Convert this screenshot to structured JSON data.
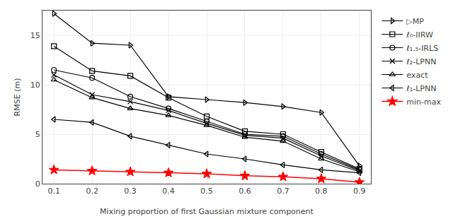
{
  "chart_data": {
    "type": "line",
    "xlabel": "Mixing proportion of first Gaussian mixture component",
    "ylabel": "RMSE (m)",
    "x": [
      0.1,
      0.2,
      0.3,
      0.4,
      0.5,
      0.6,
      0.7,
      0.8,
      0.9
    ],
    "series": [
      {
        "name": "▷MP",
        "color": "#000000",
        "marker": "triangle-right",
        "values": [
          17.2,
          14.2,
          14.0,
          8.8,
          8.5,
          8.2,
          7.8,
          7.2,
          1.8
        ]
      },
      {
        "name": "ℓ₀-IIRW",
        "color": "#000000",
        "marker": "square",
        "values": [
          13.9,
          11.4,
          10.9,
          8.7,
          6.8,
          5.3,
          5.0,
          3.2,
          1.5
        ]
      },
      {
        "name": "ℓ₁.₅-IRLS",
        "color": "#000000",
        "marker": "circle",
        "values": [
          11.5,
          10.7,
          8.8,
          7.6,
          6.3,
          5.0,
          4.8,
          3.0,
          1.4
        ]
      },
      {
        "name": "ℓ₂-LPNN",
        "color": "#000000",
        "marker": "x",
        "values": [
          11.0,
          9.0,
          8.3,
          7.4,
          6.1,
          4.9,
          4.6,
          2.8,
          1.3
        ]
      },
      {
        "name": "exact",
        "color": "#000000",
        "marker": "triangle-up",
        "values": [
          10.5,
          8.7,
          7.6,
          6.9,
          5.9,
          4.7,
          4.3,
          2.5,
          1.2
        ]
      },
      {
        "name": "ℓ₁-LPNN",
        "color": "#000000",
        "marker": "triangle-left",
        "values": [
          6.5,
          6.2,
          4.8,
          3.9,
          3.0,
          2.5,
          1.9,
          1.4,
          1.1
        ]
      },
      {
        "name": "min-max",
        "color": "#ff0000",
        "marker": "star",
        "values": [
          1.4,
          1.3,
          1.2,
          1.1,
          1.0,
          0.8,
          0.7,
          0.5,
          0.15
        ]
      }
    ],
    "xlim": [
      0.07,
      0.93
    ],
    "xticks": [
      0.1,
      0.2,
      0.3,
      0.4,
      0.5,
      0.6,
      0.7,
      0.8,
      0.9
    ],
    "ylim": [
      0,
      17.5
    ],
    "yticks": [
      0,
      5,
      10,
      15
    ],
    "grid": true
  }
}
